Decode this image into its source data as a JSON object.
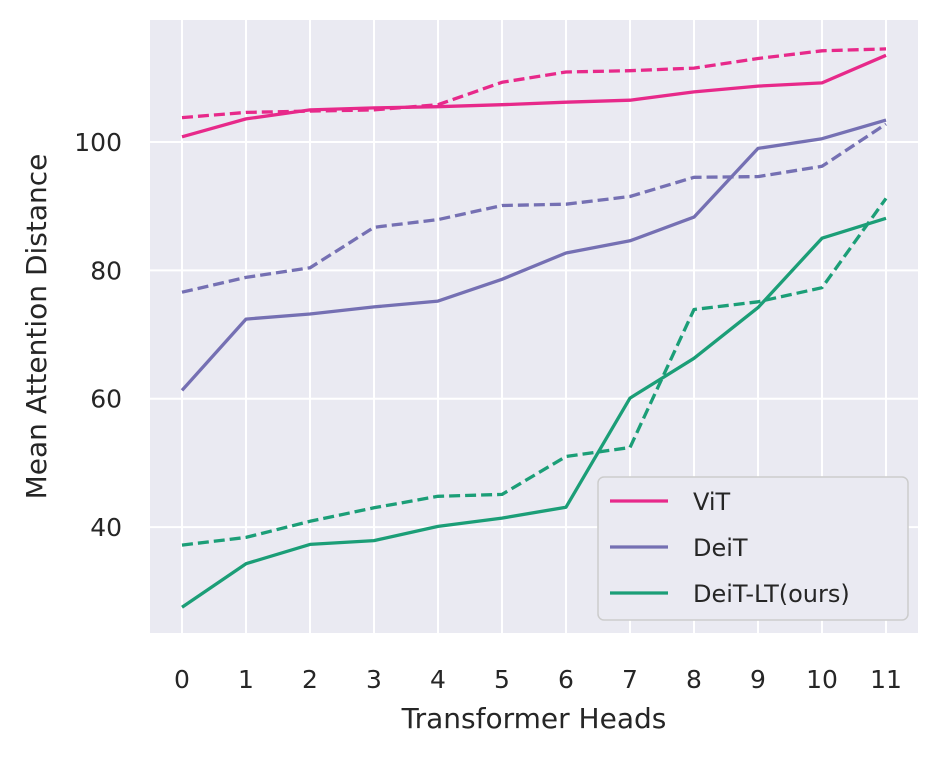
{
  "chart_data": {
    "type": "line",
    "title": "",
    "xlabel": "Transformer Heads",
    "ylabel": "Mean Attention Distance",
    "x": [
      0,
      1,
      2,
      3,
      4,
      5,
      6,
      7,
      8,
      9,
      10,
      11
    ],
    "x_ticks": [
      "0",
      "1",
      "2",
      "3",
      "4",
      "5",
      "6",
      "7",
      "8",
      "9",
      "10",
      "11"
    ],
    "xlim": [
      -0.5,
      11.5
    ],
    "ylim": [
      23.5,
      119
    ],
    "y_ticks": [
      40,
      60,
      80,
      100
    ],
    "y_tick_labels": [
      "40",
      "60",
      "80",
      "100"
    ],
    "grid": true,
    "legend_position": "bottom-right",
    "legend": [
      "ViT",
      "DeiT",
      "DeiT-LT(ours)"
    ],
    "colors": {
      "vit": "#e7298a",
      "deit": "#7570b3",
      "deit_lt": "#1b9e77",
      "plot_bg": "#eaeaf2",
      "grid": "#ffffff"
    },
    "series": [
      {
        "key": "vit",
        "style": "solid",
        "values": [
          100.8,
          103.6,
          105.0,
          105.3,
          105.5,
          105.8,
          106.2,
          106.5,
          107.8,
          108.7,
          109.2,
          113.5
        ]
      },
      {
        "key": "vit",
        "style": "dashed",
        "values": [
          103.8,
          104.6,
          104.8,
          105.0,
          105.8,
          109.3,
          110.9,
          111.1,
          111.5,
          113.0,
          114.2,
          114.5
        ]
      },
      {
        "key": "deit",
        "style": "solid",
        "values": [
          61.3,
          72.4,
          73.2,
          74.3,
          75.2,
          78.6,
          82.7,
          84.6,
          88.3,
          99.0,
          100.5,
          103.4
        ]
      },
      {
        "key": "deit",
        "style": "dashed",
        "values": [
          76.6,
          78.9,
          80.4,
          86.7,
          87.9,
          90.1,
          90.3,
          91.5,
          94.5,
          94.6,
          96.2,
          102.8
        ]
      },
      {
        "key": "deit_lt",
        "style": "solid",
        "values": [
          27.5,
          34.3,
          37.3,
          37.9,
          40.1,
          41.4,
          43.1,
          60.1,
          66.3,
          74.2,
          85.0,
          88.1
        ]
      },
      {
        "key": "deit_lt",
        "style": "dashed",
        "values": [
          37.2,
          38.4,
          40.9,
          43.0,
          44.8,
          45.1,
          51.0,
          52.4,
          73.9,
          75.1,
          77.3,
          91.2
        ]
      }
    ]
  }
}
